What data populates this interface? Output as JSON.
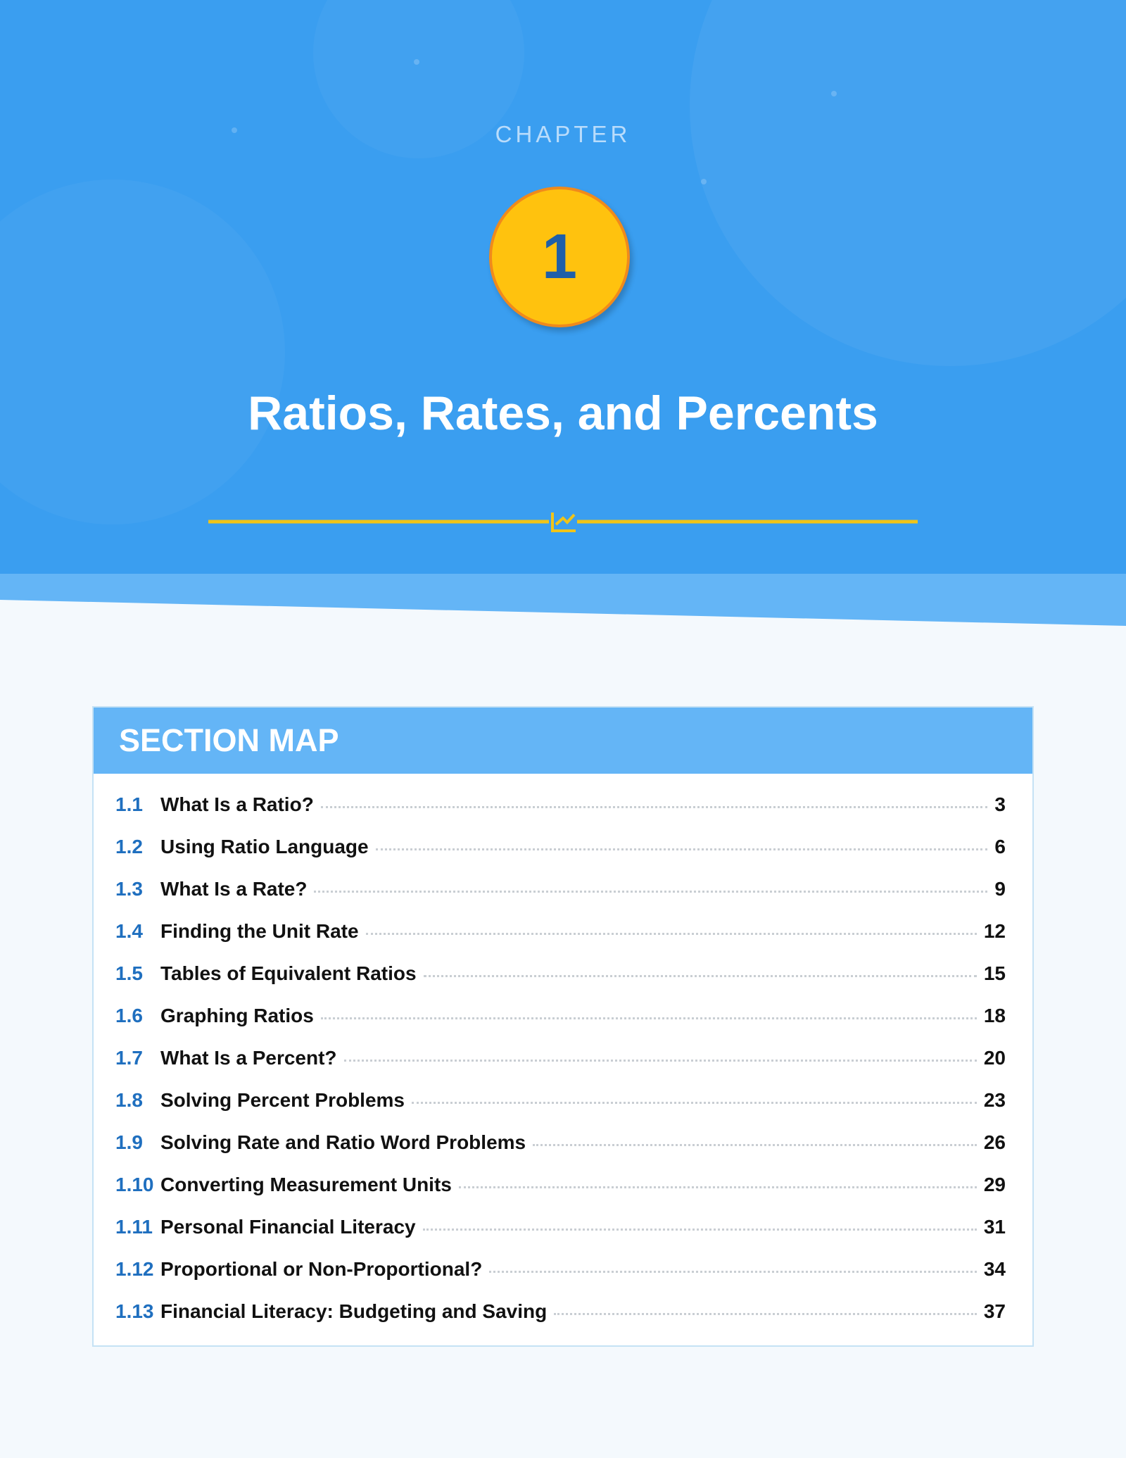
{
  "header": {
    "label": "CHAPTER",
    "number": "1",
    "title": "Ratios, Rates, and Percents"
  },
  "section_map": {
    "title": "SECTION MAP",
    "rows": [
      {
        "number": "1.1",
        "title": "What Is a Ratio?",
        "page": 3
      },
      {
        "number": "1.2",
        "title": "Using Ratio Language",
        "page": 6
      },
      {
        "number": "1.3",
        "title": "What Is a Rate?",
        "page": 9
      },
      {
        "number": "1.4",
        "title": "Finding the Unit Rate",
        "page": 12
      },
      {
        "number": "1.5",
        "title": "Tables of Equivalent Ratios",
        "page": 15
      },
      {
        "number": "1.6",
        "title": "Graphing Ratios",
        "page": 18
      },
      {
        "number": "1.7",
        "title": "What Is a Percent?",
        "page": 20
      },
      {
        "number": "1.8",
        "title": "Solving Percent Problems",
        "page": 23
      },
      {
        "number": "1.9",
        "title": "Solving Rate and Ratio Word Problems",
        "page": 26
      },
      {
        "number": "1.10",
        "title": "Converting Measurement Units",
        "page": 29
      },
      {
        "number": "1.11",
        "title": "Personal Financial Literacy",
        "page": 31
      },
      {
        "number": "1.12",
        "title": "Proportional or Non-Proportional?",
        "page": 34
      },
      {
        "number": "1.13",
        "title": "Financial Literacy: Budgeting and Saving",
        "page": 37
      }
    ]
  }
}
